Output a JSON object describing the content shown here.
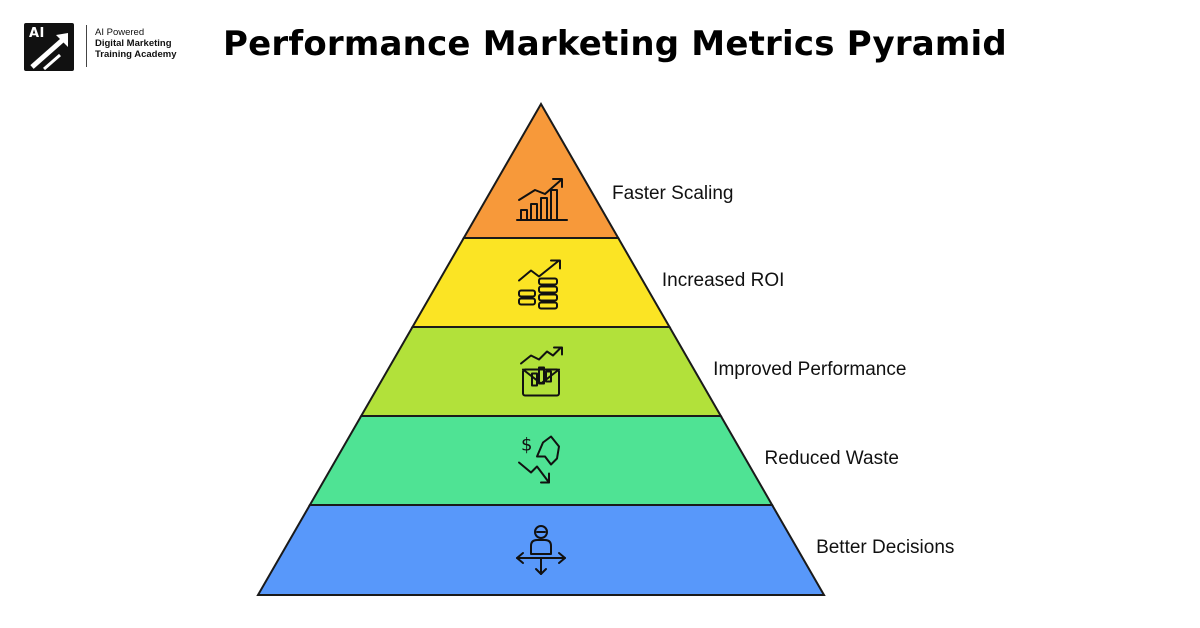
{
  "brand": {
    "logo_text": "AI",
    "line1": "AI Powered",
    "line2": "Digital Marketing",
    "line3": "Training Academy"
  },
  "title": "Performance Marketing Metrics Pyramid",
  "tiers": [
    {
      "label": "Faster Scaling",
      "color": "#F7993A",
      "icon": "bar-chart-growth-icon"
    },
    {
      "label": "Increased ROI",
      "color": "#FBE424",
      "icon": "coins-growth-icon"
    },
    {
      "label": "Improved Performance",
      "color": "#B2E13A",
      "icon": "envelope-chart-icon"
    },
    {
      "label": "Reduced Waste",
      "color": "#4FE394",
      "icon": "dollar-down-arrow-icon"
    },
    {
      "label": "Better Decisions",
      "color": "#5898FA",
      "icon": "person-crossroads-icon"
    }
  ]
}
